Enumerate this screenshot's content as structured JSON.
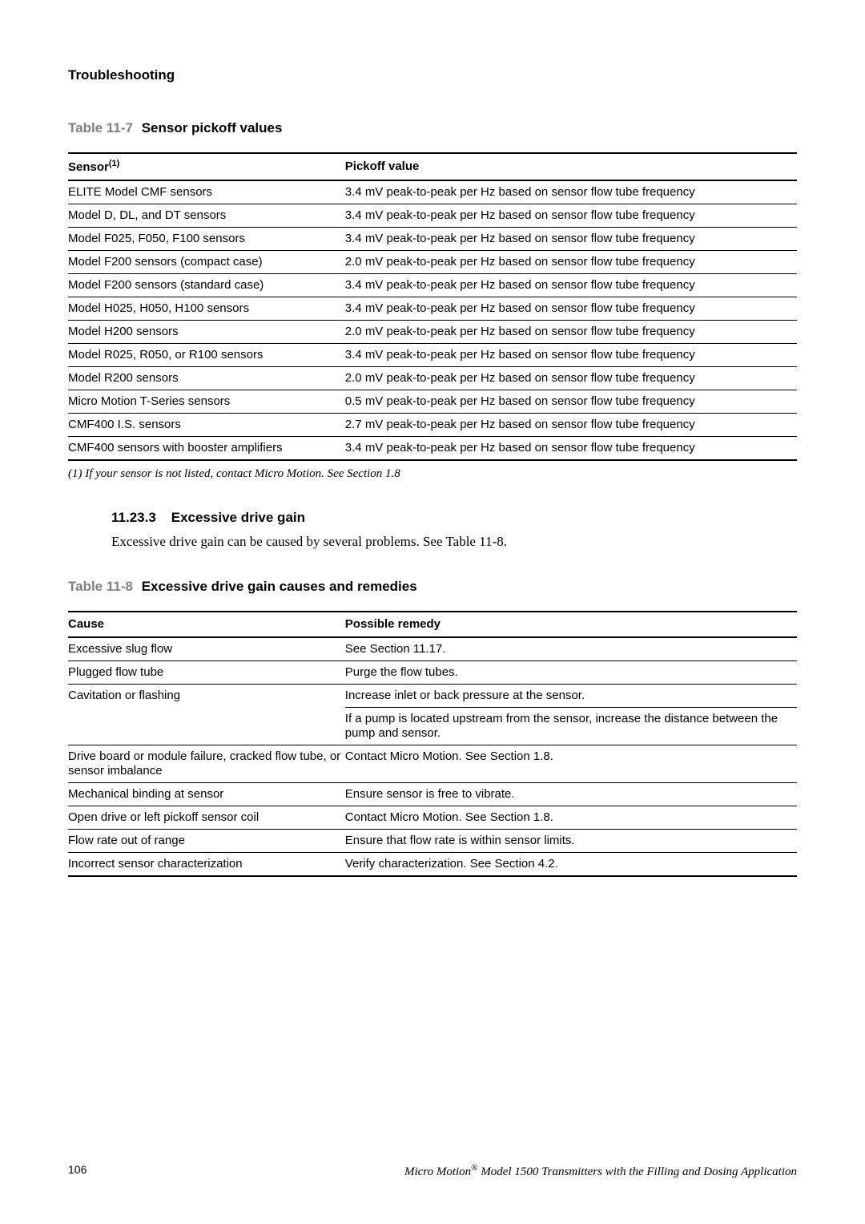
{
  "header": {
    "section": "Troubleshooting"
  },
  "table7": {
    "caption_prefix": "Table 11-7",
    "caption_title": "Sensor pickoff values",
    "col1": "Sensor",
    "col1_sup": "(1)",
    "col2": "Pickoff value",
    "rows": [
      {
        "sensor": "ELITE Model CMF sensors",
        "value": "3.4 mV peak-to-peak per Hz based on sensor flow tube frequency"
      },
      {
        "sensor": "Model D, DL, and DT sensors",
        "value": "3.4 mV peak-to-peak per Hz based on sensor flow tube frequency"
      },
      {
        "sensor": "Model F025, F050, F100 sensors",
        "value": "3.4 mV peak-to-peak per Hz based on sensor flow tube frequency"
      },
      {
        "sensor": "Model F200 sensors (compact case)",
        "value": "2.0 mV peak-to-peak per Hz based on sensor flow tube frequency"
      },
      {
        "sensor": "Model F200 sensors (standard case)",
        "value": "3.4 mV peak-to-peak per Hz based on sensor flow tube frequency"
      },
      {
        "sensor": "Model H025, H050, H100 sensors",
        "value": "3.4 mV peak-to-peak per Hz based on sensor flow tube frequency"
      },
      {
        "sensor": "Model H200 sensors",
        "value": "2.0 mV peak-to-peak per Hz based on sensor flow tube frequency"
      },
      {
        "sensor": "Model R025, R050, or R100 sensors",
        "value": "3.4 mV peak-to-peak per Hz based on sensor flow tube frequency"
      },
      {
        "sensor": "Model R200 sensors",
        "value": "2.0 mV peak-to-peak per Hz based on sensor flow tube frequency"
      },
      {
        "sensor": "Micro Motion T-Series sensors",
        "value": "0.5 mV peak-to-peak per Hz based on sensor flow tube frequency"
      },
      {
        "sensor": "CMF400 I.S. sensors",
        "value": "2.7 mV peak-to-peak per Hz based on sensor flow tube frequency"
      },
      {
        "sensor": "CMF400 sensors with booster amplifiers",
        "value": "3.4 mV peak-to-peak per Hz based on sensor flow tube frequency"
      }
    ],
    "footnote": "(1) If your sensor is not listed, contact Micro Motion. See Section 1.8"
  },
  "section_11_23_3": {
    "number": "11.23.3",
    "title": "Excessive drive gain",
    "body": "Excessive drive gain can be caused by several problems. See Table 11-8."
  },
  "table8": {
    "caption_prefix": "Table 11-8",
    "caption_title": "Excessive drive gain causes and remedies",
    "col1": "Cause",
    "col2": "Possible remedy",
    "rows": [
      {
        "cause": "Excessive slug flow",
        "remedy": "See Section 11.17."
      },
      {
        "cause": "Plugged flow tube",
        "remedy": "Purge the flow tubes."
      },
      {
        "cause": "Cavitation or flashing",
        "remedy": "Increase inlet or back pressure at the sensor.",
        "remedy2": "If a pump is located upstream from the sensor, increase the distance between the pump and sensor."
      },
      {
        "cause": "Drive board or module failure, cracked flow tube, or sensor imbalance",
        "remedy": "Contact Micro Motion. See Section 1.8."
      },
      {
        "cause": "Mechanical binding at sensor",
        "remedy": "Ensure sensor is free to vibrate."
      },
      {
        "cause": "Open drive or left pickoff sensor coil",
        "remedy": "Contact Micro Motion. See Section 1.8."
      },
      {
        "cause": "Flow rate out of range",
        "remedy": "Ensure that flow rate is within sensor limits."
      },
      {
        "cause": "Incorrect sensor characterization",
        "remedy": "Verify characterization. See Section 4.2."
      }
    ]
  },
  "footer": {
    "page": "106",
    "title_prefix": "Micro Motion",
    "title_sup": "®",
    "title_rest": " Model 1500 Transmitters with the Filling and Dosing Application"
  }
}
